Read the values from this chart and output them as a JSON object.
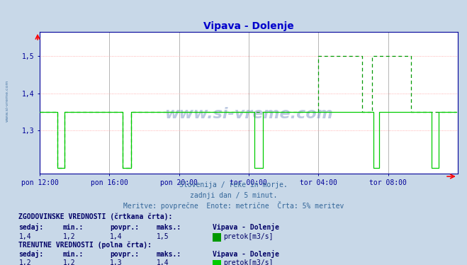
{
  "title": "Vipava - Dolenje",
  "title_color": "#0000cc",
  "bg_color": "#c8d8e8",
  "plot_bg_color": "#ffffff",
  "grid_color_h": "#ff9999",
  "grid_color_v": "#aaaaaa",
  "xlabel_color": "#000099",
  "ylabel_color": "#000099",
  "text_color": "#336699",
  "xtick_labels": [
    "pon 12:00",
    "pon 16:00",
    "pon 20:00",
    "tor 00:00",
    "tor 04:00",
    "tor 08:00"
  ],
  "xtick_positions": [
    0,
    48,
    96,
    144,
    192,
    240
  ],
  "ytick_labels": [
    "1,3",
    "1,4",
    "1,5"
  ],
  "ytick_positions": [
    1.3,
    1.4,
    1.5
  ],
  "ylim": [
    1.185,
    1.565
  ],
  "xlim": [
    0,
    288
  ],
  "total_points": 288,
  "line_color": "#00cc00",
  "dashed_color": "#009900",
  "watermark": "www.si-vreme.com",
  "subtitle1": "Slovenija / reke in morje.",
  "subtitle2": "zadnji dan / 5 minut.",
  "subtitle3": "Meritve: povprečne  Enote: metrične  Črta: 5% meritev",
  "legend_hist_label": "ZGODOVINSKE VREDNOSTI (črtkana črta):",
  "legend_curr_label": "TRENUTNE VREDNOSTI (polna črta):",
  "legend_headers": [
    "sedaj:",
    "min.:",
    "povpr.:",
    "maks.:",
    "Vipava - Dolenje"
  ],
  "legend_hist_values": [
    "1,4",
    "1,2",
    "1,4",
    "1,5"
  ],
  "legend_curr_values": [
    "1,2",
    "1,2",
    "1,3",
    "1,4"
  ],
  "legend_series": "pretok[m3/s]",
  "hist_color_box": "#009900",
  "curr_color_box": "#00cc00",
  "axis_color": "#000099",
  "tick_color": "#000099",
  "side_watermark": "www.si-vreme.com"
}
